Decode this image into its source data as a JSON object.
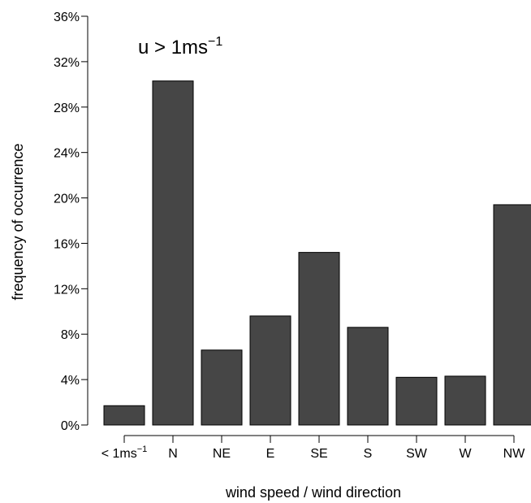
{
  "chart_data": {
    "type": "bar",
    "annotation": {
      "base": "u > 1ms",
      "superscript": "−1"
    },
    "categories": [
      "< 1ms−1",
      "N",
      "NE",
      "E",
      "SE",
      "S",
      "SW",
      "W",
      "NW"
    ],
    "category_labels": [
      {
        "base": "< 1ms",
        "superscript": "−1"
      },
      {
        "base": "N"
      },
      {
        "base": "NE"
      },
      {
        "base": "E"
      },
      {
        "base": "SE"
      },
      {
        "base": "S"
      },
      {
        "base": "SW"
      },
      {
        "base": "W"
      },
      {
        "base": "NW"
      }
    ],
    "values": [
      1.7,
      30.3,
      6.6,
      9.6,
      15.2,
      8.6,
      4.2,
      4.3,
      19.4
    ],
    "xlabel": "wind speed / wind direction",
    "ylabel": "frequency of occurrence",
    "ylim": [
      0,
      36
    ],
    "yticks": [
      0,
      4,
      8,
      12,
      16,
      20,
      24,
      28,
      32,
      36
    ],
    "ytick_labels": [
      "0%",
      "4%",
      "8%",
      "12%",
      "16%",
      "20%",
      "24%",
      "28%",
      "32%",
      "36%"
    ],
    "grid": false,
    "bar_color": "#464646",
    "bar_edge_color": "#000000"
  }
}
